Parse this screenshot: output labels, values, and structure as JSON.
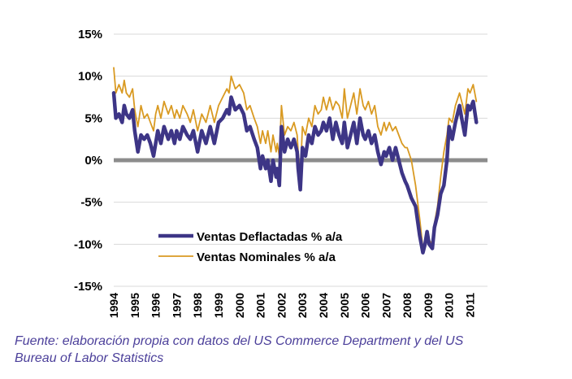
{
  "chart_data": {
    "type": "line",
    "title": "",
    "xlabel": "",
    "ylabel": "",
    "ylim": [
      -15,
      15
    ],
    "xlim": [
      1994,
      2011.6
    ],
    "y_ticks": [
      15,
      10,
      5,
      0,
      -5,
      -10,
      -15
    ],
    "y_tick_labels": [
      "15%",
      "10%",
      "5%",
      "0%",
      "-5%",
      "-10%",
      "-15%"
    ],
    "x_ticks": [
      1994,
      1995,
      1996,
      1997,
      1998,
      1999,
      2000,
      2001,
      2002,
      2003,
      2004,
      2005,
      2006,
      2007,
      2008,
      2009,
      2010,
      2011
    ],
    "x_tick_labels": [
      "1994",
      "1995",
      "1996",
      "1997",
      "1998",
      "1999",
      "2000",
      "2001",
      "2002",
      "2003",
      "2004",
      "2005",
      "2006",
      "2007",
      "2008",
      "2009",
      "2010",
      "2011"
    ],
    "grid": true,
    "legend_position": "lower-middle",
    "colors": {
      "deflactadas": "#3d3586",
      "nominales": "#d99a22",
      "zero_line": "#8c8c8c",
      "grid": "#d9d9d9"
    },
    "series": [
      {
        "name": "Ventas Deflactadas % a/a",
        "x": [
          1994.0,
          1994.1,
          1994.25,
          1994.4,
          1994.5,
          1994.6,
          1994.75,
          1994.9,
          1995.0,
          1995.15,
          1995.3,
          1995.45,
          1995.6,
          1995.75,
          1995.9,
          1996.0,
          1996.1,
          1996.25,
          1996.4,
          1996.6,
          1996.75,
          1996.9,
          1997.0,
          1997.15,
          1997.3,
          1997.5,
          1997.65,
          1997.8,
          1998.0,
          1998.2,
          1998.4,
          1998.6,
          1998.8,
          1999.0,
          1999.2,
          1999.4,
          1999.5,
          1999.6,
          1999.8,
          2000.0,
          2000.2,
          2000.35,
          2000.5,
          2000.7,
          2000.85,
          2001.0,
          2001.1,
          2001.25,
          2001.35,
          2001.5,
          2001.6,
          2001.75,
          2001.8,
          2001.9,
          2002.0,
          2002.15,
          2002.3,
          2002.45,
          2002.6,
          2002.75,
          2002.8,
          2002.9,
          2003.0,
          2003.15,
          2003.3,
          2003.45,
          2003.6,
          2003.75,
          2003.9,
          2004.0,
          2004.15,
          2004.3,
          2004.45,
          2004.6,
          2004.75,
          2004.9,
          2005.0,
          2005.15,
          2005.3,
          2005.45,
          2005.6,
          2005.75,
          2005.9,
          2006.0,
          2006.15,
          2006.3,
          2006.45,
          2006.6,
          2006.75,
          2006.9,
          2007.0,
          2007.15,
          2007.3,
          2007.45,
          2007.6,
          2007.75,
          2007.9,
          2008.0,
          2008.2,
          2008.4,
          2008.6,
          2008.75,
          2008.85,
          2008.95,
          2009.05,
          2009.2,
          2009.3,
          2009.45,
          2009.6,
          2009.75,
          2009.9,
          2010.0,
          2010.15,
          2010.3,
          2010.5,
          2010.6,
          2010.75,
          2010.9,
          2011.0,
          2011.15,
          2011.3
        ],
        "values": [
          8.0,
          5.0,
          5.5,
          4.5,
          6.5,
          5.5,
          5.0,
          6.0,
          3.5,
          1.0,
          3.0,
          2.5,
          3.0,
          2.0,
          0.5,
          2.0,
          3.5,
          2.0,
          4.0,
          2.5,
          3.5,
          2.0,
          3.5,
          2.5,
          4.0,
          3.0,
          2.5,
          3.5,
          1.0,
          3.5,
          2.0,
          4.0,
          2.0,
          4.5,
          5.0,
          6.0,
          5.5,
          7.5,
          6.0,
          6.5,
          5.5,
          3.5,
          4.0,
          2.5,
          1.5,
          -1.0,
          0.5,
          -1.0,
          0.0,
          -2.5,
          0.0,
          -2.0,
          -1.0,
          -3.0,
          4.0,
          1.0,
          2.5,
          1.5,
          2.5,
          1.0,
          -1.0,
          -3.5,
          1.5,
          0.5,
          3.0,
          2.0,
          4.0,
          3.0,
          3.5,
          4.5,
          3.5,
          5.0,
          2.5,
          4.5,
          3.0,
          2.0,
          4.5,
          1.5,
          3.0,
          4.5,
          2.0,
          5.0,
          3.0,
          2.5,
          3.5,
          2.0,
          3.0,
          1.0,
          -0.5,
          1.0,
          0.5,
          1.5,
          0.0,
          1.5,
          0.0,
          -1.5,
          -2.5,
          -3.0,
          -4.5,
          -5.5,
          -9.0,
          -11.0,
          -10.0,
          -8.5,
          -10.0,
          -10.5,
          -8.0,
          -6.5,
          -4.0,
          -3.0,
          0.0,
          4.0,
          2.5,
          4.5,
          6.5,
          5.0,
          3.0,
          6.5,
          6.0,
          7.0,
          4.5
        ]
      },
      {
        "name": "Ventas Nominales % a/a",
        "x": [
          1994.0,
          1994.1,
          1994.25,
          1994.4,
          1994.5,
          1994.6,
          1994.75,
          1994.9,
          1995.0,
          1995.15,
          1995.3,
          1995.45,
          1995.6,
          1995.75,
          1995.9,
          1996.0,
          1996.1,
          1996.25,
          1996.4,
          1996.6,
          1996.75,
          1996.9,
          1997.0,
          1997.15,
          1997.3,
          1997.5,
          1997.65,
          1997.8,
          1998.0,
          1998.2,
          1998.4,
          1998.6,
          1998.8,
          1999.0,
          1999.2,
          1999.4,
          1999.5,
          1999.6,
          1999.8,
          2000.0,
          2000.2,
          2000.35,
          2000.5,
          2000.7,
          2000.85,
          2001.0,
          2001.1,
          2001.25,
          2001.35,
          2001.5,
          2001.6,
          2001.75,
          2001.8,
          2001.9,
          2002.0,
          2002.15,
          2002.3,
          2002.45,
          2002.6,
          2002.75,
          2002.8,
          2002.9,
          2003.0,
          2003.15,
          2003.3,
          2003.45,
          2003.6,
          2003.75,
          2003.9,
          2004.0,
          2004.15,
          2004.3,
          2004.45,
          2004.6,
          2004.75,
          2004.9,
          2005.0,
          2005.15,
          2005.3,
          2005.45,
          2005.6,
          2005.75,
          2005.9,
          2006.0,
          2006.15,
          2006.3,
          2006.45,
          2006.6,
          2006.75,
          2006.9,
          2007.0,
          2007.15,
          2007.3,
          2007.45,
          2007.6,
          2007.75,
          2007.9,
          2008.0,
          2008.2,
          2008.4,
          2008.6,
          2008.75,
          2008.85,
          2008.95,
          2009.05,
          2009.2,
          2009.3,
          2009.45,
          2009.6,
          2009.75,
          2009.9,
          2010.0,
          2010.15,
          2010.3,
          2010.5,
          2010.6,
          2010.75,
          2010.9,
          2011.0,
          2011.15,
          2011.3
        ],
        "values": [
          11.0,
          8.0,
          9.0,
          8.0,
          9.5,
          8.0,
          7.5,
          8.5,
          6.0,
          4.0,
          6.5,
          5.0,
          5.5,
          4.5,
          3.5,
          5.5,
          6.5,
          5.0,
          7.0,
          5.5,
          6.5,
          5.0,
          6.0,
          5.0,
          6.5,
          5.5,
          4.5,
          6.0,
          3.5,
          5.5,
          4.5,
          6.5,
          4.5,
          6.5,
          7.5,
          8.5,
          8.0,
          10.0,
          8.5,
          9.0,
          8.0,
          6.0,
          6.5,
          5.0,
          4.0,
          2.0,
          3.5,
          2.0,
          3.5,
          1.0,
          3.0,
          1.0,
          2.0,
          0.5,
          6.5,
          3.0,
          4.0,
          3.5,
          4.5,
          3.0,
          1.0,
          -2.0,
          4.0,
          3.0,
          5.0,
          4.0,
          6.5,
          5.5,
          6.0,
          7.5,
          6.0,
          7.5,
          6.0,
          7.0,
          6.5,
          5.0,
          8.5,
          5.0,
          6.5,
          8.0,
          5.5,
          8.5,
          6.5,
          6.0,
          7.0,
          5.5,
          6.5,
          4.0,
          3.0,
          4.5,
          3.5,
          4.5,
          3.5,
          4.0,
          3.0,
          2.0,
          1.5,
          1.5,
          0.0,
          -3.0,
          -7.0,
          -10.5,
          -10.0,
          -9.0,
          -9.5,
          -10.0,
          -7.5,
          -5.5,
          -2.0,
          1.0,
          3.0,
          5.0,
          4.5,
          6.5,
          8.0,
          7.0,
          5.5,
          8.5,
          8.0,
          9.0,
          7.0
        ]
      }
    ],
    "legend": [
      "Ventas Deflactadas % a/a",
      "Ventas Nominales % a/a"
    ]
  },
  "caption": {
    "line1": "Fuente: elaboración propia con datos del US Commerce Department y del US",
    "line2": "Bureau of Labor Statistics"
  }
}
